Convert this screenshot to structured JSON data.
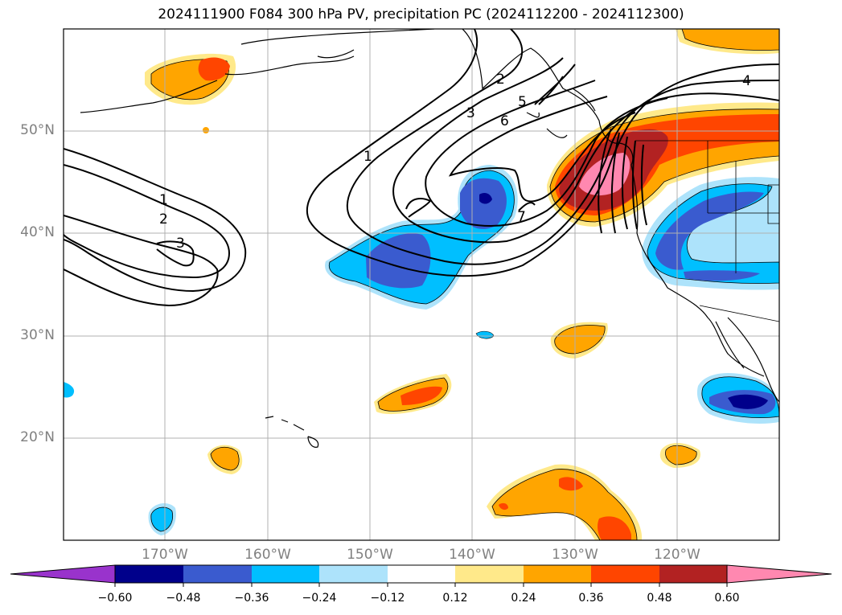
{
  "title": "2024111900 F084 300 hPa PV, precipitation PC (2024112200 - 2024112300)",
  "map": {
    "lat_labels": [
      "50°N",
      "40°N",
      "30°N",
      "20°N"
    ],
    "lon_labels": [
      "170°W",
      "160°W",
      "150°W",
      "140°W",
      "130°W",
      "120°W"
    ],
    "contour_labels": [
      "1",
      "2",
      "3",
      "1",
      "2",
      "3",
      "4",
      "5",
      "6",
      "7"
    ]
  },
  "colorbar": {
    "colors": [
      "#9933cc",
      "#00008b",
      "#3a5bcf",
      "#00bfff",
      "#ade3fb",
      "#ffffff",
      "#ffe98a",
      "#ffa500",
      "#ff4500",
      "#b22222",
      "#ff88b0"
    ],
    "ticks": [
      "−0.60",
      "−0.48",
      "−0.36",
      "−0.24",
      "−0.12",
      "0.12",
      "0.24",
      "0.36",
      "0.48",
      "0.60"
    ]
  }
}
